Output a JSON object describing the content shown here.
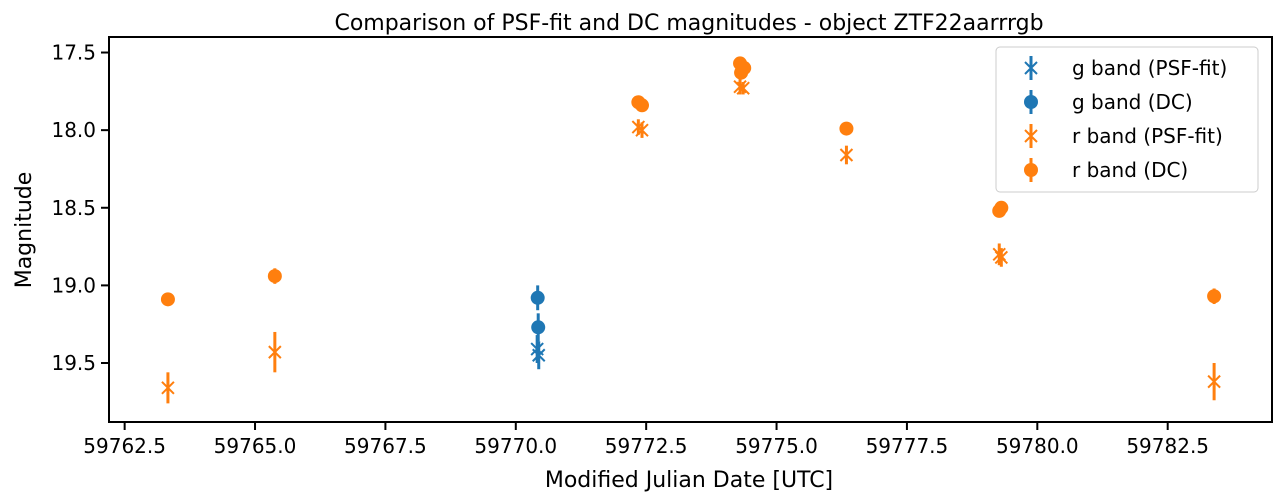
{
  "chart_data": {
    "type": "scatter",
    "title": "Comparison of PSF-fit and DC magnitudes - object ZTF22aarrrgb",
    "xlabel": "Modified Julian Date [UTC]",
    "ylabel": "Magnitude",
    "xlim": [
      59762.2,
      59784.5
    ],
    "ylim": [
      19.88,
      17.4
    ],
    "y_inverted": true,
    "xticks": [
      59762.5,
      59765.0,
      59767.5,
      59770.0,
      59772.5,
      59775.0,
      59777.5,
      59780.0,
      59782.5
    ],
    "xtick_labels": [
      "59762.5",
      "59765.0",
      "59767.5",
      "59770.0",
      "59772.5",
      "59775.0",
      "59777.5",
      "59780.0",
      "59782.5"
    ],
    "yticks": [
      17.5,
      18.0,
      18.5,
      19.0,
      19.5
    ],
    "ytick_labels": [
      "17.5",
      "18.0",
      "18.5",
      "19.0",
      "19.5"
    ],
    "grid": false,
    "legend_position": "top-right",
    "series": [
      {
        "name": "g band (PSF-fit)",
        "marker": "x",
        "color": "#1f77b4",
        "points": [
          {
            "x": 59770.41,
            "y": 19.41,
            "err": 0.09
          },
          {
            "x": 59770.44,
            "y": 19.45,
            "err": 0.09
          }
        ]
      },
      {
        "name": "g band (DC)",
        "marker": "o",
        "color": "#1f77b4",
        "points": [
          {
            "x": 59770.42,
            "y": 19.08,
            "err": 0.08
          },
          {
            "x": 59770.43,
            "y": 19.27,
            "err": 0.09
          }
        ]
      },
      {
        "name": "r band (PSF-fit)",
        "marker": "x",
        "color": "#ff7f0e",
        "points": [
          {
            "x": 59763.33,
            "y": 19.66,
            "err": 0.1
          },
          {
            "x": 59765.38,
            "y": 19.43,
            "err": 0.13
          },
          {
            "x": 59772.35,
            "y": 17.98,
            "err": 0.05
          },
          {
            "x": 59772.42,
            "y": 18.0,
            "err": 0.05
          },
          {
            "x": 59774.3,
            "y": 17.72,
            "err": 0.05
          },
          {
            "x": 59774.36,
            "y": 17.73,
            "err": 0.04
          },
          {
            "x": 59776.34,
            "y": 18.16,
            "err": 0.06
          },
          {
            "x": 59779.27,
            "y": 18.8,
            "err": 0.07
          },
          {
            "x": 59779.31,
            "y": 18.82,
            "err": 0.06
          },
          {
            "x": 59783.39,
            "y": 19.62,
            "err": 0.12
          }
        ]
      },
      {
        "name": "r band (DC)",
        "marker": "o",
        "color": "#ff7f0e",
        "points": [
          {
            "x": 59763.33,
            "y": 19.09,
            "err": 0.04
          },
          {
            "x": 59765.38,
            "y": 18.94,
            "err": 0.05
          },
          {
            "x": 59772.35,
            "y": 17.82,
            "err": 0.03
          },
          {
            "x": 59772.42,
            "y": 17.84,
            "err": 0.03
          },
          {
            "x": 59774.3,
            "y": 17.57,
            "err": 0.03
          },
          {
            "x": 59774.32,
            "y": 17.63,
            "err": 0.03
          },
          {
            "x": 59774.38,
            "y": 17.6,
            "err": 0.03
          },
          {
            "x": 59776.34,
            "y": 17.99,
            "err": 0.04
          },
          {
            "x": 59779.27,
            "y": 18.52,
            "err": 0.04
          },
          {
            "x": 59779.31,
            "y": 18.5,
            "err": 0.04
          },
          {
            "x": 59783.39,
            "y": 19.07,
            "err": 0.05
          }
        ]
      }
    ]
  }
}
